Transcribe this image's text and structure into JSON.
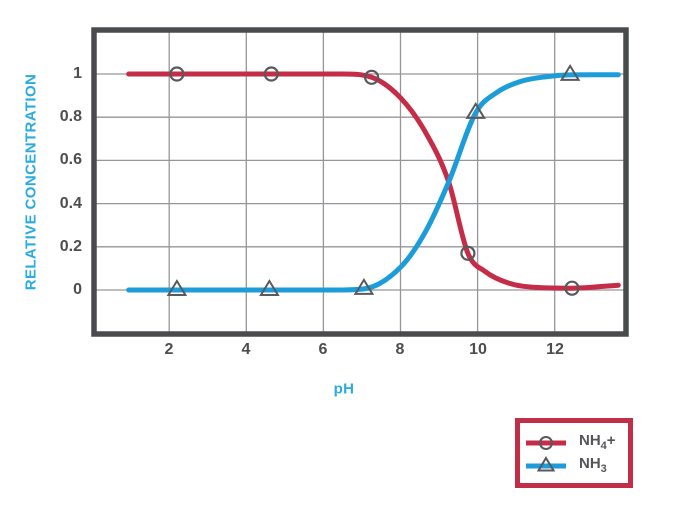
{
  "style": {
    "background": "#FFFFFF",
    "plot_border_color": "#4A4B4D",
    "grid_color": "#96969A",
    "tick_label_color": "#4D4D4F",
    "axis_title_color": "#29ABE2",
    "marker_stroke_color": "#58595C",
    "legend_border_color": "#C22D48",
    "legend_text_color": "#54555A"
  },
  "chart_data": {
    "type": "line",
    "title": "",
    "xlabel": "pH",
    "ylabel": "RELATIVE CONCENTRATION",
    "xlim": [
      0.05,
      13.85
    ],
    "ylim": [
      -0.204,
      1.204
    ],
    "grid": true,
    "legend_position": "outside-bottom-right",
    "x_ticks": [
      {
        "v": 2,
        "label": "2"
      },
      {
        "v": 4,
        "label": "4"
      },
      {
        "v": 6,
        "label": "6"
      },
      {
        "v": 8,
        "label": "8"
      },
      {
        "v": 10,
        "label": "10"
      },
      {
        "v": 12,
        "label": "12"
      }
    ],
    "y_ticks": [
      {
        "v": 0,
        "label": "0"
      },
      {
        "v": 0.2,
        "label": "0.2"
      },
      {
        "v": 0.4,
        "label": "0.4"
      },
      {
        "v": 0.6,
        "label": "0.6"
      },
      {
        "v": 0.8,
        "label": "0.8"
      },
      {
        "v": 1,
        "label": "1"
      }
    ],
    "series": [
      {
        "name": "NH4+",
        "label": {
          "base": "NH",
          "sub": "4",
          "suffix": "+"
        },
        "color": "#C52C48",
        "marker": "circle",
        "curve_points": [
          [
            0.95,
            1.0
          ],
          [
            4.0,
            1.0
          ],
          [
            6.5,
            1.0
          ],
          [
            7.25,
            0.985
          ],
          [
            8.0,
            0.89
          ],
          [
            8.65,
            0.73
          ],
          [
            9.25,
            0.5
          ],
          [
            9.75,
            0.17
          ],
          [
            10.2,
            0.085
          ],
          [
            10.8,
            0.032
          ],
          [
            11.5,
            0.012
          ],
          [
            12.45,
            0.008
          ],
          [
            13.65,
            0.022
          ]
        ],
        "marker_points": [
          [
            2.2,
            1.0
          ],
          [
            4.65,
            1.0
          ],
          [
            7.25,
            0.985
          ],
          [
            9.75,
            0.17
          ],
          [
            12.45,
            0.008
          ]
        ]
      },
      {
        "name": "NH3",
        "label": {
          "base": "NH",
          "sub": "3",
          "suffix": ""
        },
        "color": "#1C9CD8",
        "marker": "triangle",
        "curve_points": [
          [
            0.95,
            0.0
          ],
          [
            4.0,
            0.0
          ],
          [
            6.4,
            0.0
          ],
          [
            7.05,
            0.005
          ],
          [
            8.0,
            0.105
          ],
          [
            8.65,
            0.27
          ],
          [
            9.25,
            0.5
          ],
          [
            9.95,
            0.82
          ],
          [
            10.5,
            0.915
          ],
          [
            11.1,
            0.965
          ],
          [
            11.8,
            0.988
          ],
          [
            12.4,
            0.996
          ],
          [
            13.65,
            0.997
          ]
        ],
        "marker_points": [
          [
            2.2,
            0.0
          ],
          [
            4.6,
            0.0
          ],
          [
            7.05,
            0.005
          ],
          [
            9.95,
            0.82
          ],
          [
            12.4,
            0.996
          ]
        ]
      }
    ]
  },
  "legend": {
    "items": [
      {
        "series": "NH4+"
      },
      {
        "series": "NH3"
      }
    ]
  }
}
